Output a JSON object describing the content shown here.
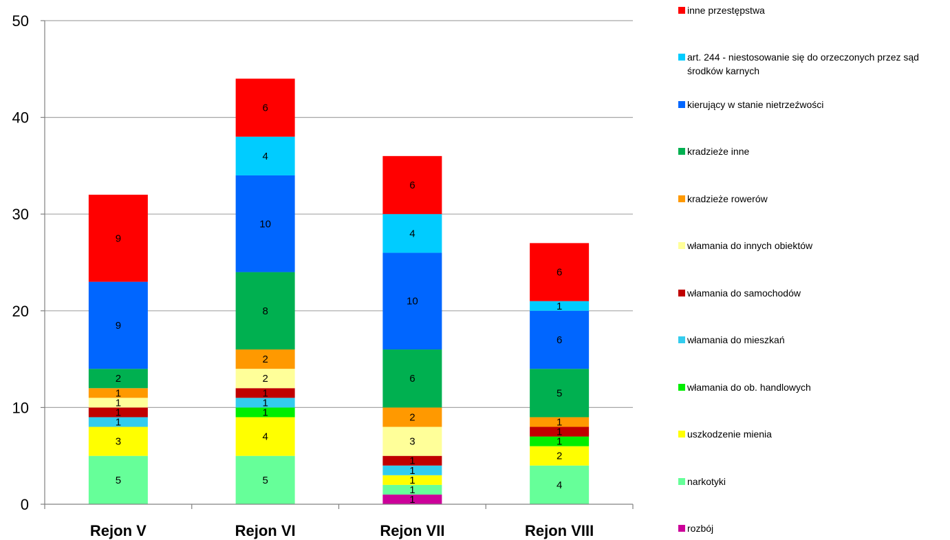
{
  "chart_data": {
    "type": "bar",
    "stacked": true,
    "categories": [
      "Rejon V",
      "Rejon VI",
      "Rejon VII",
      "Rejon VIII"
    ],
    "ylim": [
      0,
      50
    ],
    "yticks": [
      "0",
      "10",
      "20",
      "30",
      "40",
      "50"
    ],
    "grid": true,
    "legend_position": "right",
    "series": [
      {
        "name": "rozbój",
        "color": "#cc0099",
        "values": [
          0,
          0,
          1,
          0
        ]
      },
      {
        "name": "narkotyki",
        "color": "#66ff99",
        "values": [
          5,
          5,
          1,
          4
        ]
      },
      {
        "name": "uszkodzenie mienia",
        "color": "#ffff00",
        "values": [
          3,
          4,
          1,
          2
        ]
      },
      {
        "name": "włamania do ob. handlowych",
        "color": "#00ee00",
        "values": [
          0,
          1,
          0,
          1
        ]
      },
      {
        "name": "włamania do mieszkań",
        "color": "#33ccee",
        "values": [
          1,
          1,
          1,
          0
        ]
      },
      {
        "name": "włamania do samochodów",
        "color": "#c00000",
        "values": [
          1,
          1,
          1,
          1
        ]
      },
      {
        "name": "włamania do innych obiektów",
        "color": "#ffff99",
        "values": [
          1,
          2,
          3,
          0
        ]
      },
      {
        "name": "kradzieże rowerów",
        "color": "#ff9900",
        "values": [
          1,
          2,
          2,
          1
        ]
      },
      {
        "name": "kradzieże inne",
        "color": "#00b050",
        "values": [
          2,
          8,
          6,
          5
        ]
      },
      {
        "name": "kierujący w stanie nietrzeźwości",
        "color": "#0066ff",
        "values": [
          9,
          10,
          10,
          6
        ]
      },
      {
        "name": "art. 244 - niestosowanie się do orzeczonych przez sąd środków karnych",
        "color": "#00ccff",
        "values": [
          0,
          4,
          4,
          1
        ]
      },
      {
        "name": "inne przestępstwa",
        "color": "#ff0000",
        "values": [
          9,
          6,
          6,
          6
        ]
      }
    ]
  }
}
